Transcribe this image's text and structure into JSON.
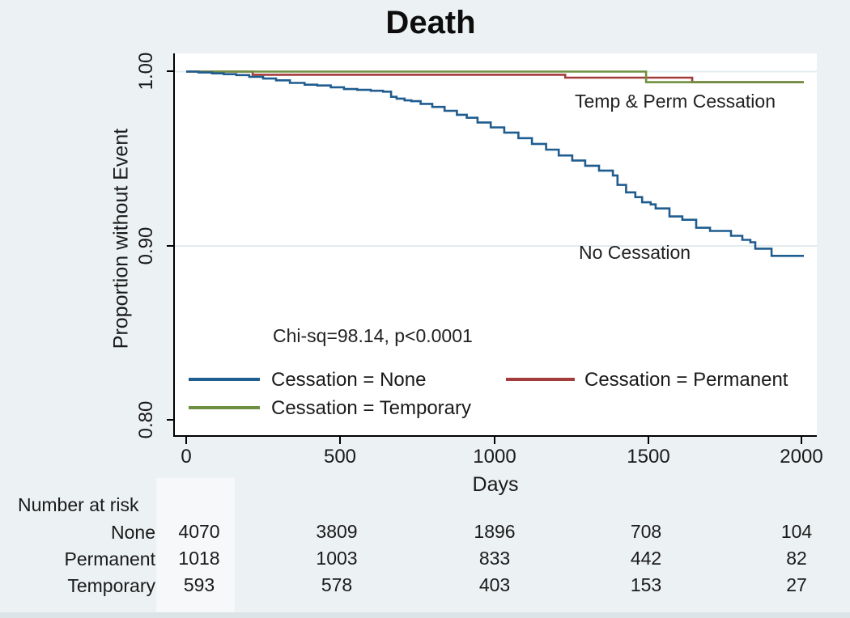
{
  "figure": {
    "title": "Death",
    "background_color": "#ecf1f3",
    "plot_background": "#ffffff",
    "grid_color": "#e2ecee",
    "axis_color": "#000000"
  },
  "axes": {
    "y": {
      "label": "Proportion without Event",
      "ticks": [
        "1.00",
        "0.90",
        "0.80"
      ]
    },
    "x": {
      "label": "Days",
      "ticks": [
        "0",
        "500",
        "1000",
        "1500",
        "2000"
      ]
    }
  },
  "annotations": {
    "temp_perm": "Temp & Perm Cessation",
    "no_cessation": "No Cessation",
    "statistic": "Chi-sq=98.14, p<0.0001"
  },
  "legend": {
    "items": [
      {
        "label": "Cessation = None",
        "color": "#1f5c8f"
      },
      {
        "label": "Cessation = Permanent",
        "color": "#a23d3b"
      },
      {
        "label": "Cessation = Temporary",
        "color": "#6e9040"
      }
    ]
  },
  "risk_table": {
    "title": "Number at risk",
    "columns": [
      "0",
      "500",
      "1000",
      "1500",
      "2000"
    ],
    "rows": [
      {
        "label": "None",
        "values": [
          "4070",
          "3809",
          "1896",
          "708",
          "104"
        ]
      },
      {
        "label": "Permanent",
        "values": [
          "1018",
          "1003",
          "833",
          "442",
          "82"
        ]
      },
      {
        "label": "Temporary",
        "values": [
          "593",
          "578",
          "403",
          "153",
          "27"
        ]
      }
    ]
  },
  "chart_data": {
    "type": "line",
    "subtype": "kaplan-meier-step",
    "title": "Death",
    "xlabel": "Days",
    "ylabel": "Proportion without Event",
    "xlim": [
      0,
      2008
    ],
    "ylim": [
      0.793,
      1.011
    ],
    "x_ticks": [
      0,
      500,
      1000,
      1500,
      2000
    ],
    "y_ticks": [
      1.0,
      0.9,
      0.8
    ],
    "grid_values": [
      1.0,
      0.9
    ],
    "grid": "horizontal-only",
    "legend_position": "inside-bottom-left",
    "statistic": "Chi-sq=98.14, p<0.0001",
    "series": [
      {
        "name": "Cessation = Permanent",
        "key": "permanent",
        "color": "#a23d3b",
        "points": [
          [
            0,
            1.0
          ],
          [
            216,
            0.9982
          ],
          [
            1232,
            0.9965
          ],
          [
            1645,
            0.9939
          ],
          [
            2008,
            0.9939
          ]
        ]
      },
      {
        "name": "Cessation = Temporary",
        "key": "temporary",
        "color": "#6e9040",
        "points": [
          [
            0,
            1.0
          ],
          [
            1495,
            0.9939
          ],
          [
            2008,
            0.9939
          ]
        ]
      },
      {
        "name": "Cessation = None",
        "key": "none",
        "color": "#1f5c8f",
        "points": [
          [
            0,
            1.0
          ],
          [
            40,
            0.9995
          ],
          [
            84,
            0.999
          ],
          [
            122,
            0.9985
          ],
          [
            163,
            0.998
          ],
          [
            205,
            0.997
          ],
          [
            250,
            0.996
          ],
          [
            292,
            0.995
          ],
          [
            337,
            0.9935
          ],
          [
            385,
            0.9925
          ],
          [
            426,
            0.992
          ],
          [
            470,
            0.991
          ],
          [
            513,
            0.99
          ],
          [
            556,
            0.9895
          ],
          [
            600,
            0.989
          ],
          [
            640,
            0.9885
          ],
          [
            666,
            0.9855
          ],
          [
            684,
            0.9845
          ],
          [
            710,
            0.9835
          ],
          [
            732,
            0.983
          ],
          [
            762,
            0.9815
          ],
          [
            800,
            0.9797
          ],
          [
            840,
            0.9775
          ],
          [
            880,
            0.9752
          ],
          [
            912,
            0.9735
          ],
          [
            947,
            0.9708
          ],
          [
            990,
            0.968
          ],
          [
            1034,
            0.965
          ],
          [
            1080,
            0.9618
          ],
          [
            1124,
            0.9585
          ],
          [
            1170,
            0.9552
          ],
          [
            1211,
            0.9519
          ],
          [
            1255,
            0.949
          ],
          [
            1297,
            0.946
          ],
          [
            1342,
            0.9432
          ],
          [
            1387,
            0.9404
          ],
          [
            1402,
            0.935
          ],
          [
            1430,
            0.9307
          ],
          [
            1460,
            0.928
          ],
          [
            1482,
            0.925
          ],
          [
            1510,
            0.9238
          ],
          [
            1526,
            0.9215
          ],
          [
            1571,
            0.9169
          ],
          [
            1613,
            0.915
          ],
          [
            1658,
            0.9104
          ],
          [
            1703,
            0.9086
          ],
          [
            1771,
            0.9058
          ],
          [
            1808,
            0.9035
          ],
          [
            1834,
            0.9021
          ],
          [
            1850,
            0.8984
          ],
          [
            1903,
            0.8943
          ],
          [
            2008,
            0.8943
          ]
        ]
      }
    ]
  }
}
